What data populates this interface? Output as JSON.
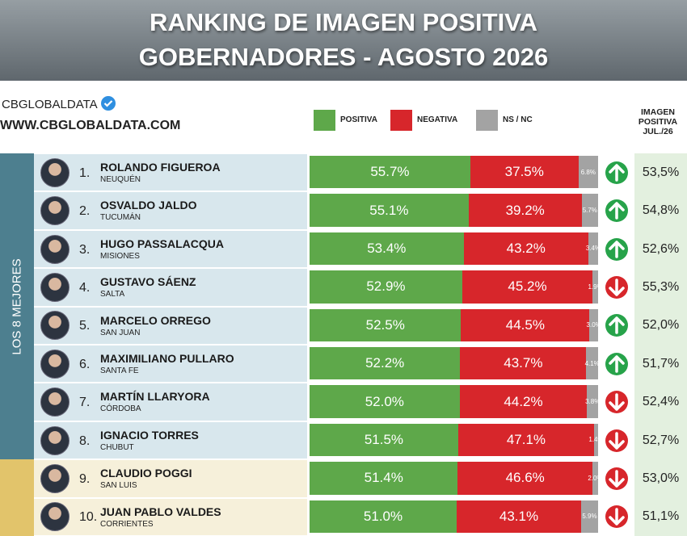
{
  "chart_data": {
    "type": "bar",
    "title": "RANKING DE IMAGEN POSITIVA",
    "subtitle": "GOBERNADORES - AGOSTO 2026",
    "source": "CBGLOBALDATA",
    "website": "WWW.CBGLOBALDATA.COM",
    "stacked": true,
    "orientation": "horizontal",
    "xlim": [
      0,
      100
    ],
    "groups": [
      {
        "label": "LOS 8 MEJORES",
        "color": "#4d7f8f",
        "background": "#d8e7ed",
        "rows": 8
      },
      {
        "color": "#e2c46b",
        "background": "#f6f0da",
        "rows": 2
      }
    ],
    "ranks": [
      "1.",
      "2.",
      "3.",
      "4.",
      "5.",
      "6.",
      "7.",
      "8.",
      "9.",
      "10."
    ],
    "categories": [
      "ROLANDO FIGUEROA",
      "OSVALDO JALDO",
      "HUGO PASSALACQUA",
      "GUSTAVO SÁENZ",
      "MARCELO ORREGO",
      "MAXIMILIANO PULLARO",
      "MARTÍN LLARYORA",
      "IGNACIO TORRES",
      "CLAUDIO POGGI",
      "JUAN PABLO VALDES"
    ],
    "provinces": [
      "NEUQUÉN",
      "TUCUMÁN",
      "MISIONES",
      "SALTA",
      "SAN JUAN",
      "SANTA FE",
      "CÓRDOBA",
      "CHUBUT",
      "SAN LUIS",
      "CORRIENTES"
    ],
    "series": [
      {
        "name": "POSITIVA",
        "color": "#5ea84a",
        "values": [
          55.7,
          55.1,
          53.4,
          52.9,
          52.5,
          52.2,
          52.0,
          51.5,
          51.4,
          51.0
        ],
        "value_labels": [
          "55.7%",
          "55.1%",
          "53.4%",
          "52.9%",
          "52.5%",
          "52.2%",
          "52.0%",
          "51.5%",
          "51.4%",
          "51.0%"
        ]
      },
      {
        "name": "NEGATIVA",
        "color": "#d7262b",
        "values": [
          37.5,
          39.2,
          43.2,
          45.2,
          44.5,
          43.7,
          44.2,
          47.1,
          46.6,
          43.1
        ],
        "value_labels": [
          "37.5%",
          "39.2%",
          "43.2%",
          "45.2%",
          "44.5%",
          "43.7%",
          "44.2%",
          "47.1%",
          "46.6%",
          "43.1%"
        ]
      },
      {
        "name": "NS / NC",
        "color": "#a3a3a3",
        "values": [
          6.8,
          5.7,
          3.4,
          1.9,
          3.0,
          4.1,
          3.8,
          1.4,
          2.0,
          5.9
        ],
        "value_labels": [
          "6.8%",
          "5.7%",
          "3.4%",
          "1.9%",
          "3.0%",
          "4.1%",
          "3.8%",
          "1.4%",
          "2.0%",
          "5.9%"
        ]
      }
    ],
    "previous": {
      "name": "IMAGEN POSITIVA JUL./26",
      "color": "#e3f0df",
      "values": [
        53.5,
        54.8,
        52.6,
        55.3,
        52.0,
        51.7,
        52.4,
        52.7,
        53.0,
        51.1
      ],
      "value_labels": [
        "53,5%",
        "54,8%",
        "52,6%",
        "55,3%",
        "52,0%",
        "51,7%",
        "52,4%",
        "52,7%",
        "53,0%",
        "51,1%"
      ]
    },
    "trend_colors": {
      "up": "#27a34a",
      "down": "#d7262b"
    }
  }
}
